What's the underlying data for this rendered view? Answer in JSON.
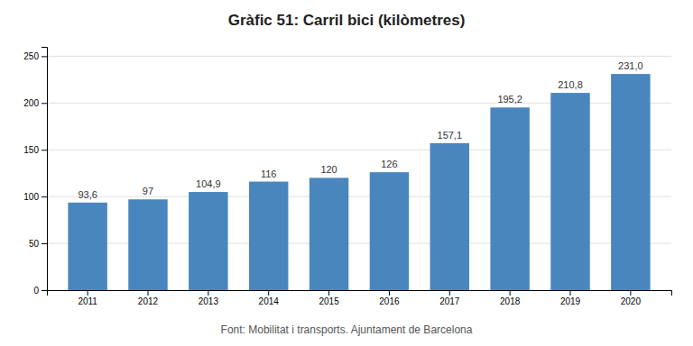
{
  "chart_data": {
    "type": "bar",
    "title": "Gràfic 51: Carril bici (kilòmetres)",
    "categories": [
      "2011",
      "2012",
      "2013",
      "2014",
      "2015",
      "2016",
      "2017",
      "2018",
      "2019",
      "2020"
    ],
    "values": [
      93.6,
      97,
      104.9,
      116,
      120,
      126,
      157.1,
      195.2,
      210.8,
      231.0
    ],
    "value_labels": [
      "93,6",
      "97",
      "104,9",
      "116",
      "120",
      "126",
      "157,1",
      "195,2",
      "210,8",
      "231,0"
    ],
    "data_labels": true,
    "color": "#4a86be",
    "ylim": [
      0,
      260
    ],
    "yticks": [
      0,
      50,
      100,
      150,
      200,
      250
    ],
    "grid": true,
    "annotations": [
      "Font: Mobilitat i transports. Ajuntament de Barcelona"
    ]
  }
}
